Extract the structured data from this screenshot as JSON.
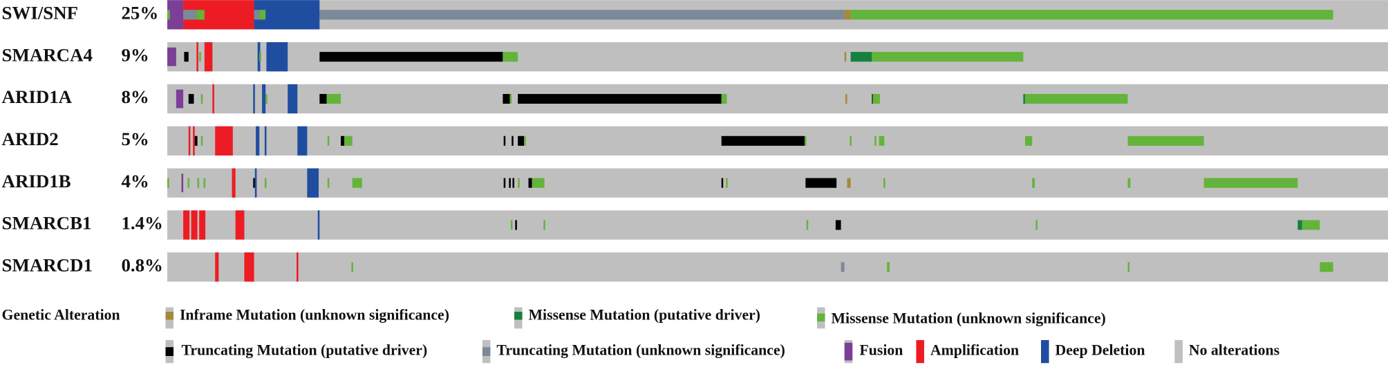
{
  "rows": [
    {
      "gene": "SWI/SNF",
      "frequency": "25%"
    },
    {
      "gene": "SMARCA4",
      "frequency": "9%"
    },
    {
      "gene": "ARID1A",
      "frequency": "8%"
    },
    {
      "gene": "ARID2",
      "frequency": "5%"
    },
    {
      "gene": "ARID1B",
      "frequency": "4%"
    },
    {
      "gene": "SMARCB1",
      "frequency": "1.4%"
    },
    {
      "gene": "SMARCD1",
      "frequency": "0.8%"
    }
  ],
  "legend_title": "Genetic Alteration",
  "legend": [
    "Inframe Mutation (unknown significance)",
    "Missense Mutation (putative driver)",
    "Missense Mutation (unknown significance)",
    "Truncating Mutation (putative driver)",
    "Truncating Mutation (unknown significance)",
    "Fusion",
    "Amplification",
    "Deep Deletion",
    "No alterations"
  ]
}
